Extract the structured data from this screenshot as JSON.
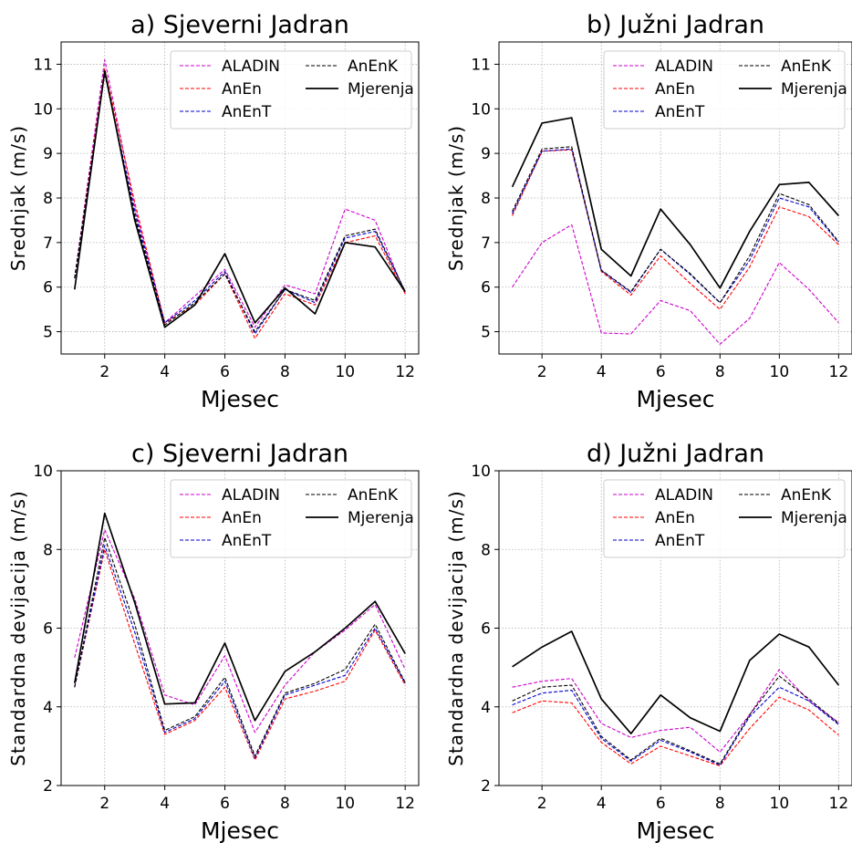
{
  "chart_data": [
    {
      "type": "line",
      "title": "a) Sjeverni Jadran",
      "xlabel": "Mjesec",
      "ylabel": "Srednjak (m/s)",
      "xlim": [
        0.55,
        12.45
      ],
      "ylim": [
        4.5,
        11.5
      ],
      "xticks": [
        2,
        4,
        6,
        8,
        10,
        12
      ],
      "yticks": [
        5,
        6,
        7,
        8,
        9,
        10,
        11
      ],
      "grid": true,
      "legend_position": "top-right",
      "x": [
        1,
        2,
        3,
        4,
        5,
        6,
        7,
        8,
        9,
        10,
        11,
        12
      ],
      "series": [
        {
          "name": "ALADIN",
          "color": "#cc00cc",
          "style": "dashed",
          "values": [
            6.2,
            11.1,
            7.8,
            5.2,
            5.8,
            6.4,
            5.1,
            6.05,
            5.85,
            7.75,
            7.5,
            5.85
          ]
        },
        {
          "name": "AnEn",
          "color": "#ff0000",
          "style": "dashed",
          "values": [
            6.2,
            10.9,
            7.9,
            5.2,
            5.6,
            6.3,
            4.85,
            5.85,
            5.6,
            7.0,
            7.15,
            5.85
          ]
        },
        {
          "name": "AnEnT",
          "color": "#0000cc",
          "style": "dashed",
          "values": [
            6.2,
            10.8,
            7.7,
            5.2,
            5.7,
            6.35,
            4.95,
            5.95,
            5.65,
            7.1,
            7.25,
            5.9
          ]
        },
        {
          "name": "AnEnK",
          "color": "#000000",
          "style": "dashed",
          "values": [
            6.2,
            10.8,
            7.6,
            5.15,
            5.65,
            6.3,
            5.0,
            5.95,
            5.7,
            7.15,
            7.3,
            5.9
          ]
        },
        {
          "name": "Mjerenja",
          "color": "#000000",
          "style": "solid",
          "values": [
            5.95,
            10.85,
            7.5,
            5.1,
            5.6,
            6.75,
            5.2,
            5.98,
            5.4,
            7.0,
            6.9,
            5.9
          ]
        }
      ]
    },
    {
      "type": "line",
      "title": "b) Južni Jadran",
      "xlabel": "Mjesec",
      "ylabel": "Srednjak (m/s)",
      "xlim": [
        0.55,
        12.45
      ],
      "ylim": [
        4.5,
        11.5
      ],
      "xticks": [
        2,
        4,
        6,
        8,
        10,
        12
      ],
      "yticks": [
        5,
        6,
        7,
        8,
        9,
        10,
        11
      ],
      "grid": true,
      "legend_position": "top-right",
      "x": [
        1,
        2,
        3,
        4,
        5,
        6,
        7,
        8,
        9,
        10,
        11,
        12
      ],
      "series": [
        {
          "name": "ALADIN",
          "color": "#cc00cc",
          "style": "dashed",
          "values": [
            6.0,
            7.0,
            7.4,
            4.97,
            4.95,
            5.7,
            5.47,
            4.72,
            5.3,
            6.55,
            5.95,
            5.2
          ]
        },
        {
          "name": "AnEn",
          "color": "#ff0000",
          "style": "dashed",
          "values": [
            7.6,
            9.05,
            9.08,
            6.35,
            5.82,
            6.7,
            6.08,
            5.5,
            6.45,
            7.8,
            7.58,
            6.95
          ]
        },
        {
          "name": "AnEnT",
          "color": "#0000cc",
          "style": "dashed",
          "values": [
            7.65,
            9.05,
            9.1,
            6.37,
            5.88,
            6.85,
            6.28,
            5.65,
            6.6,
            8.0,
            7.8,
            7.0
          ]
        },
        {
          "name": "AnEnK",
          "color": "#000000",
          "style": "dashed",
          "values": [
            7.7,
            9.1,
            9.15,
            6.38,
            5.9,
            6.85,
            6.3,
            5.65,
            6.7,
            8.1,
            7.85,
            7.02
          ]
        },
        {
          "name": "Mjerenja",
          "color": "#000000",
          "style": "solid",
          "values": [
            8.25,
            9.68,
            9.8,
            6.85,
            6.25,
            7.75,
            6.95,
            5.98,
            7.25,
            8.3,
            8.35,
            7.6
          ]
        }
      ]
    },
    {
      "type": "line",
      "title": "c) Sjeverni Jadran",
      "xlabel": "Mjesec",
      "ylabel": "Standardna devijacija (m/s)",
      "xlim": [
        0.55,
        12.45
      ],
      "ylim": [
        2,
        10
      ],
      "xticks": [
        2,
        4,
        6,
        8,
        10,
        12
      ],
      "yticks": [
        2,
        4,
        6,
        8,
        10
      ],
      "grid": true,
      "legend_position": "top-right",
      "x": [
        1,
        2,
        3,
        4,
        5,
        6,
        7,
        8,
        9,
        10,
        11,
        12
      ],
      "series": [
        {
          "name": "ALADIN",
          "color": "#cc00cc",
          "style": "dashed",
          "values": [
            5.25,
            8.5,
            6.75,
            4.3,
            4.05,
            5.3,
            3.35,
            4.55,
            5.4,
            5.95,
            6.6,
            4.95
          ]
        },
        {
          "name": "AnEn",
          "color": "#ff0000",
          "style": "dashed",
          "values": [
            4.5,
            8.0,
            5.6,
            3.3,
            3.65,
            4.5,
            2.65,
            4.2,
            4.4,
            4.65,
            5.95,
            4.55
          ]
        },
        {
          "name": "AnEnT",
          "color": "#0000cc",
          "style": "dashed",
          "values": [
            4.5,
            8.1,
            5.9,
            3.35,
            3.7,
            4.65,
            2.7,
            4.3,
            4.55,
            4.8,
            6.0,
            4.6
          ]
        },
        {
          "name": "AnEnK",
          "color": "#000000",
          "style": "dashed",
          "values": [
            4.5,
            8.3,
            6.1,
            3.4,
            3.75,
            4.75,
            2.75,
            4.35,
            4.6,
            4.95,
            6.1,
            4.62
          ]
        },
        {
          "name": "Mjerenja",
          "color": "#000000",
          "style": "solid",
          "values": [
            4.6,
            8.92,
            6.65,
            4.07,
            4.1,
            5.62,
            3.65,
            4.9,
            5.4,
            6.0,
            6.68,
            5.35
          ]
        }
      ]
    },
    {
      "type": "line",
      "title": "d) Južni Jadran",
      "xlabel": "Mjesec",
      "ylabel": "Standardna devijacija (m/s)",
      "xlim": [
        0.55,
        12.45
      ],
      "ylim": [
        2,
        10
      ],
      "xticks": [
        2,
        4,
        6,
        8,
        10,
        12
      ],
      "yticks": [
        2,
        4,
        6,
        8,
        10
      ],
      "grid": true,
      "legend_position": "top-right",
      "x": [
        1,
        2,
        3,
        4,
        5,
        6,
        7,
        8,
        9,
        10,
        11,
        12
      ],
      "series": [
        {
          "name": "ALADIN",
          "color": "#cc00cc",
          "style": "dashed",
          "values": [
            4.5,
            4.65,
            4.72,
            3.58,
            3.22,
            3.4,
            3.48,
            2.85,
            3.8,
            4.95,
            4.15,
            3.6
          ]
        },
        {
          "name": "AnEn",
          "color": "#ff0000",
          "style": "dashed",
          "values": [
            3.85,
            4.15,
            4.1,
            3.1,
            2.55,
            3.0,
            2.75,
            2.5,
            3.45,
            4.25,
            3.92,
            3.28
          ]
        },
        {
          "name": "AnEnT",
          "color": "#0000cc",
          "style": "dashed",
          "values": [
            4.05,
            4.35,
            4.42,
            3.2,
            2.62,
            3.15,
            2.85,
            2.52,
            3.75,
            4.5,
            4.15,
            3.55
          ]
        },
        {
          "name": "AnEnK",
          "color": "#000000",
          "style": "dashed",
          "values": [
            4.15,
            4.5,
            4.55,
            3.25,
            2.65,
            3.2,
            2.88,
            2.55,
            3.8,
            4.78,
            4.2,
            3.58
          ]
        },
        {
          "name": "Mjerenja",
          "color": "#000000",
          "style": "solid",
          "values": [
            5.02,
            5.52,
            5.92,
            4.2,
            3.32,
            4.3,
            3.72,
            3.38,
            5.18,
            5.85,
            5.52,
            4.55
          ]
        }
      ]
    }
  ]
}
